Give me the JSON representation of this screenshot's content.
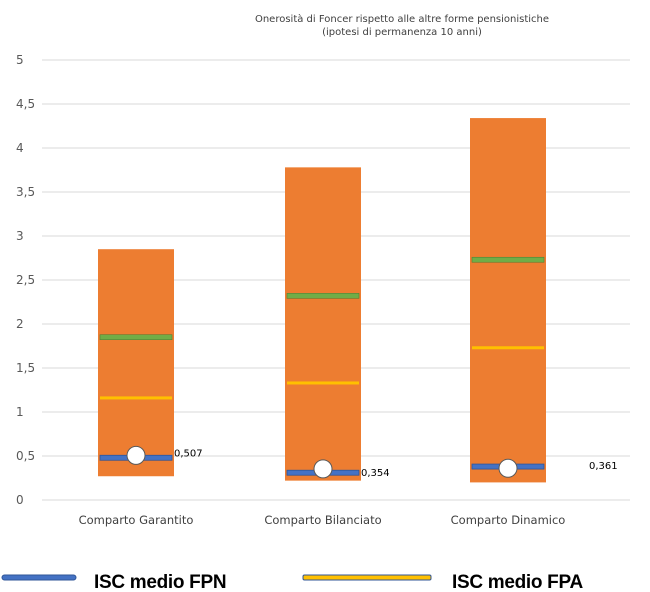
{
  "chart_data": {
    "type": "bar",
    "title_lines": [
      "Onerosità di Foncer rispetto alle altre forme pensionistiche",
      "(ipotesi di permanenza 10 anni)"
    ],
    "categories": [
      "Comparto Garantito",
      "Comparto Bilanciato",
      "Comparto Dinamico"
    ],
    "ylim": [
      0,
      5
    ],
    "yticks": [
      0,
      0.5,
      1,
      1.5,
      2,
      2.5,
      3,
      3.5,
      4,
      4.5,
      5
    ],
    "ytick_labels": [
      "0",
      "0,5",
      "1",
      "1,5",
      "2",
      "2,5",
      "3",
      "3,5",
      "4",
      "4,5",
      "5"
    ],
    "grid": true,
    "range_bars": [
      {
        "category": "Comparto Garantito",
        "low": 0.27,
        "high": 2.85
      },
      {
        "category": "Comparto Bilanciato",
        "low": 0.22,
        "high": 3.78
      },
      {
        "category": "Comparto Dinamico",
        "low": 0.2,
        "high": 4.34
      }
    ],
    "series": [
      {
        "name": "ISC medio FPN",
        "values": [
          0.48,
          0.31,
          0.38
        ]
      },
      {
        "name": "ISC medio FPA",
        "values": [
          1.16,
          1.33,
          1.73
        ]
      },
      {
        "values": [
          1.85,
          2.32,
          2.73
        ]
      },
      {
        "values": [
          0.507,
          0.354,
          0.361
        ]
      }
    ],
    "point_labels": [
      "0,507",
      "0,354",
      "0,361"
    ],
    "colors": {
      "range": "#ED7D31",
      "fpn": "#4472C4",
      "fpa": "#FFC000",
      "green": "#70AD47",
      "grid": "#D9D9D9",
      "marker": "#FFFFFF"
    }
  },
  "legend": [
    {
      "label": "ISC medio FPN",
      "color": "#4472C4"
    },
    {
      "label": "ISC medio FPA",
      "color": "#FFC000"
    }
  ]
}
